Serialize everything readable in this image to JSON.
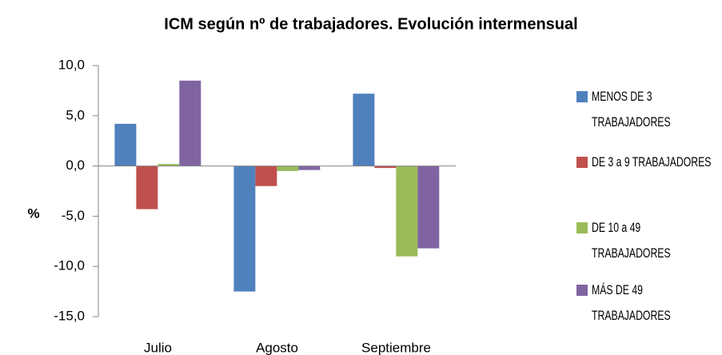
{
  "chart_data": {
    "type": "bar",
    "title": "ICM según nº de trabajadores. Evolución intermensual",
    "y_label": "%",
    "categories": [
      "Julio",
      "Agosto",
      "Septiembre"
    ],
    "series": [
      {
        "name": "MENOS DE 3 TRABAJADORES",
        "color": "#4f81bd",
        "values": [
          4.2,
          -12.5,
          7.2
        ]
      },
      {
        "name": "DE 3 a 9 TRABAJADORES",
        "color": "#c0504d",
        "values": [
          -4.3,
          -2.0,
          -0.2
        ]
      },
      {
        "name": "DE 10 a 49 TRABAJADORES",
        "color": "#9bbb59",
        "values": [
          0.2,
          -0.5,
          -9.0
        ]
      },
      {
        "name": "MÁS DE 49 TRABAJADORES",
        "color": "#8064a2",
        "values": [
          8.5,
          -0.4,
          -8.2
        ]
      }
    ],
    "ylim": [
      -15,
      10
    ],
    "yticks": [
      {
        "value": -15,
        "label": "-15,0"
      },
      {
        "value": -10,
        "label": "-10,0"
      },
      {
        "value": -5,
        "label": "-5,0"
      },
      {
        "value": 0,
        "label": "0,0"
      },
      {
        "value": 5,
        "label": "5,0"
      },
      {
        "value": 10,
        "label": "10,0"
      }
    ],
    "grid": false,
    "legend": "right"
  }
}
